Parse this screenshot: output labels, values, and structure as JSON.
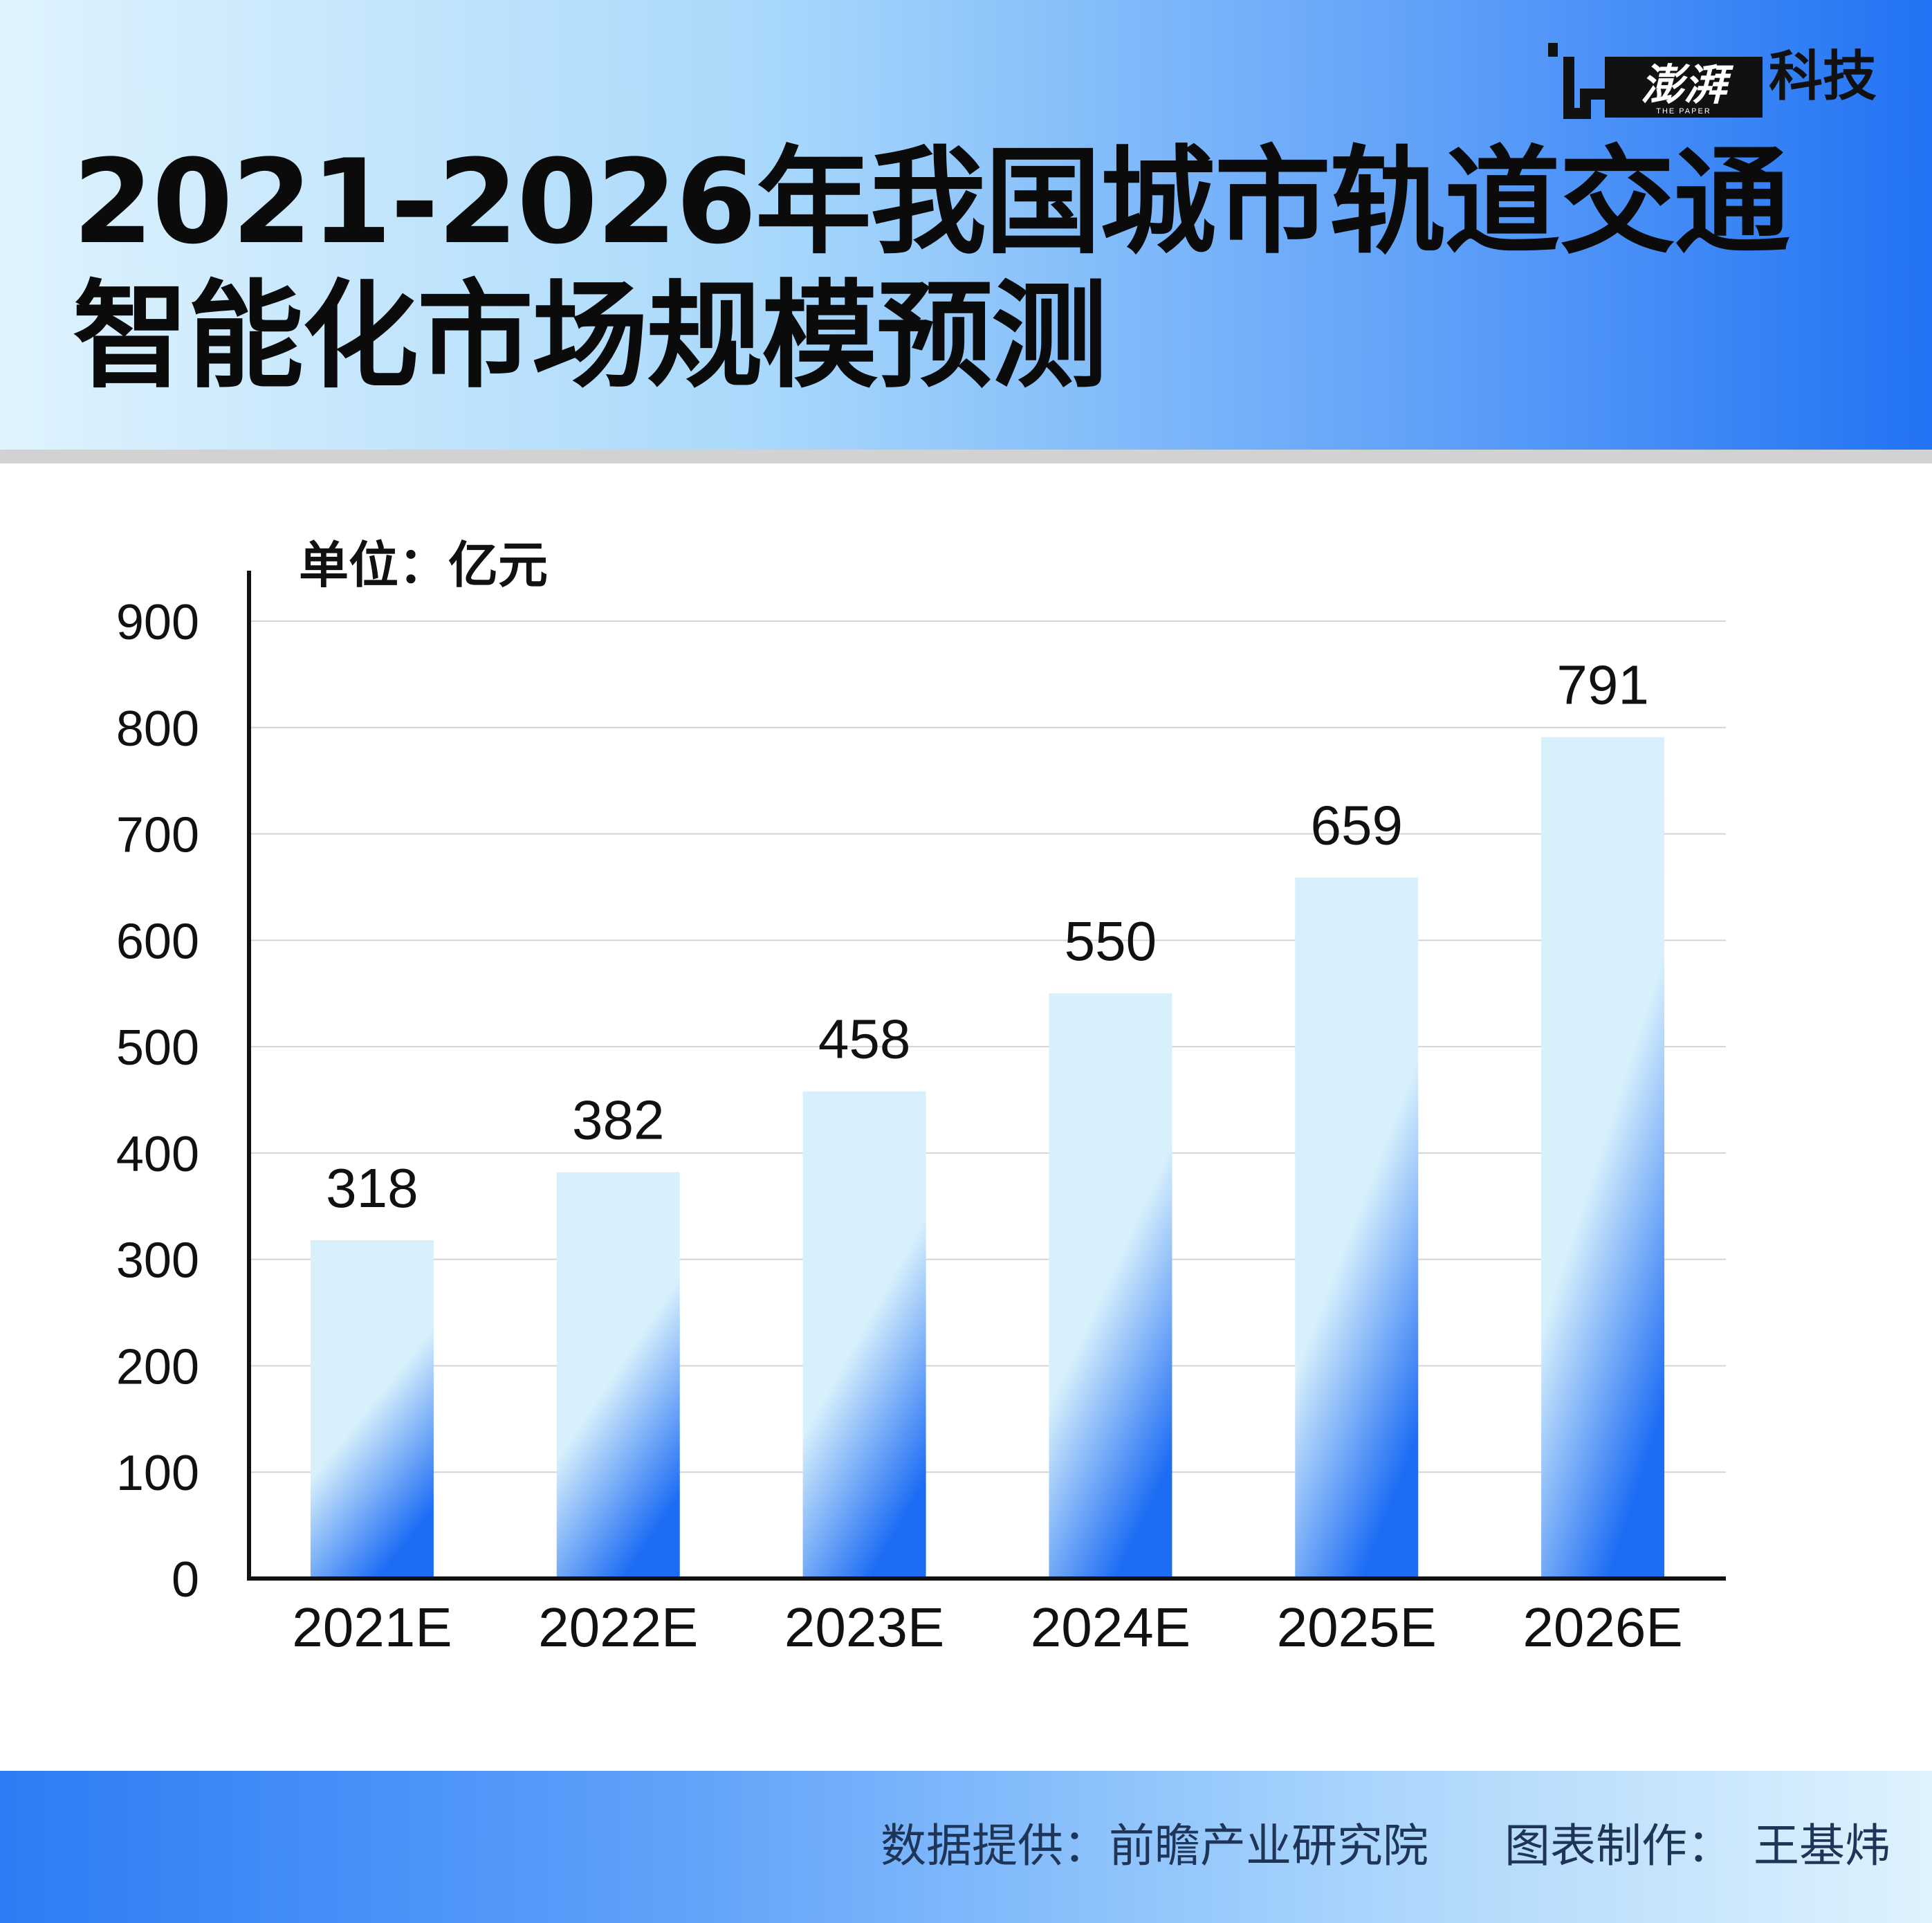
{
  "brand": {
    "name": "澎湃",
    "sub": "THE PAPER",
    "section": "科技"
  },
  "title": {
    "line1": "2021-2026年我国城市轨道交通",
    "line2": "智能化市场规模预测"
  },
  "colors": {
    "bar_top": "#d7f0fc",
    "bar_bottom": "#1c6cf4",
    "grid": "#d4d4d4",
    "axis": "#111111"
  },
  "chart_data": {
    "type": "bar",
    "unit_label": "单位：亿元",
    "categories": [
      "2021E",
      "2022E",
      "2023E",
      "2024E",
      "2025E",
      "2026E"
    ],
    "values": [
      318,
      382,
      458,
      550,
      659,
      791
    ],
    "ylim": [
      0,
      900
    ],
    "yticks": [
      0,
      100,
      200,
      300,
      400,
      500,
      600,
      700,
      800,
      900
    ],
    "grid": true,
    "title": "",
    "xlabel": "",
    "ylabel": ""
  },
  "footer": {
    "source_label": "数据提供：",
    "source": "前瞻产业研究院",
    "maker_label": "图表制作：",
    "maker": "王基炜"
  }
}
